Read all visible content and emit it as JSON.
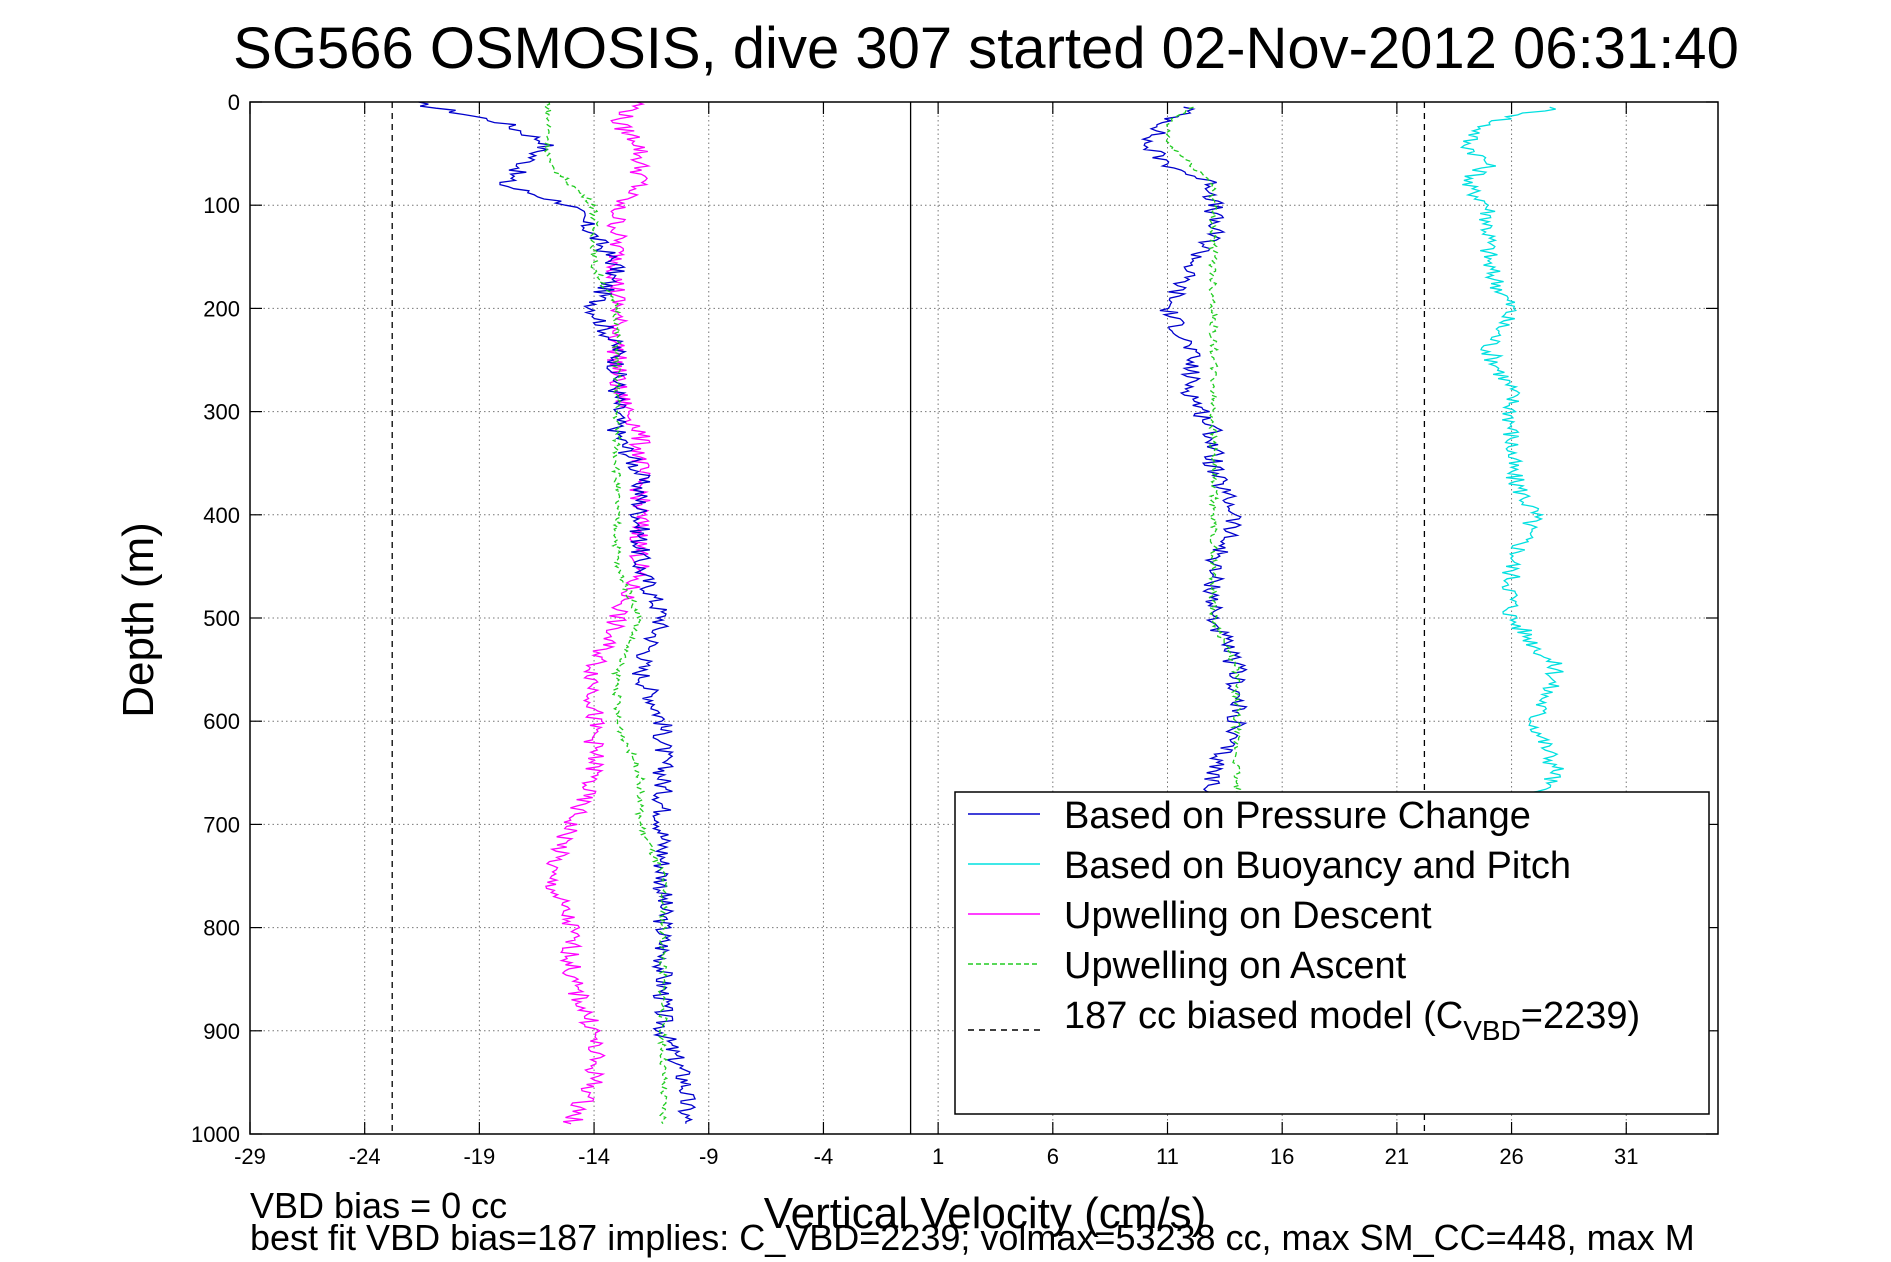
{
  "chart_data": {
    "type": "line",
    "title": "SG566 OSMOSIS, dive 307 started 02-Nov-2012 06:31:40",
    "xlabel": "Vertical Velocity (cm/s)",
    "ylabel": "Depth (m)",
    "xlim": [
      -29,
      35
    ],
    "ylim": [
      1000,
      0
    ],
    "y_reversed": true,
    "grid": true,
    "x_ticks": [
      "-29",
      "-24",
      "-19",
      "-14",
      "-9",
      "-4",
      "1",
      "6",
      "11",
      "16",
      "21",
      "26",
      "31"
    ],
    "y_ticks": [
      "0",
      "100",
      "200",
      "300",
      "400",
      "500",
      "600",
      "700",
      "800",
      "900",
      "1000"
    ],
    "legend_position": "bottom-right",
    "footer_lines": [
      "VBD bias = 0 cc",
      "best fit VBD bias=187 implies: C_VBD=2239; volmax=53238 cc, max SM_CC=448, max M"
    ],
    "series": [
      {
        "name": "Based on Pressure Change",
        "color": "#0000cc",
        "style": "solid",
        "segments": [
          {
            "depth": [
              0,
              20,
              40,
              60,
              80,
              100,
              130,
              160,
              200,
              240,
              280,
              320,
              360,
              400,
              450,
              500,
              550,
              600,
              650,
              700,
              750,
              800,
              850,
              900,
              950,
              990
            ],
            "velocity": [
              -22,
              -18,
              -16,
              -17,
              -18,
              -15,
              -14,
              -13,
              -14,
              -13,
              -13,
              -13,
              -12,
              -12,
              -12,
              -11,
              -12,
              -11,
              -11,
              -11,
              -11,
              -11,
              -11,
              -11,
              -10,
              -10
            ]
          },
          {
            "depth": [
              5,
              20,
              40,
              60,
              80,
              100,
              130,
              160,
              200,
              240,
              280,
              320,
              360,
              400,
              450,
              500,
              550,
              600,
              650,
              672
            ],
            "velocity": [
              12,
              11,
              10,
              11,
              13,
              13,
              13,
              12,
              11,
              12,
              12,
              13,
              13,
              14,
              13,
              13,
              14,
              14,
              13,
              13
            ]
          }
        ]
      },
      {
        "name": "Based on Buoyancy and Pitch",
        "color": "#00e0e0",
        "style": "solid",
        "segments": [
          {
            "depth": [
              5,
              20,
              40,
              60,
              80,
              100,
              130,
              160,
              200,
              240,
              280,
              320,
              360,
              400,
              450,
              500,
              550,
              600,
              650,
              672
            ],
            "velocity": [
              28,
              25,
              24,
              25,
              24,
              25,
              25,
              25,
              26,
              25,
              26,
              26,
              26,
              27,
              26,
              26,
              28,
              27,
              28,
              27
            ]
          }
        ]
      },
      {
        "name": "Upwelling on Descent",
        "color": "#ff00ff",
        "style": "solid",
        "segments": [
          {
            "depth": [
              0,
              20,
              40,
              60,
              80,
              100,
              130,
              160,
              200,
              240,
              280,
              320,
              360,
              400,
              450,
              500,
              550,
              600,
              650,
              700,
              750,
              800,
              850,
              900,
              950,
              990
            ],
            "velocity": [
              -12,
              -13,
              -12,
              -12,
              -12,
              -13,
              -13,
              -13,
              -13,
              -13,
              -13,
              -12,
              -12,
              -12,
              -12,
              -13,
              -14,
              -14,
              -14,
              -15,
              -16,
              -15,
              -15,
              -14,
              -14,
              -15
            ]
          }
        ]
      },
      {
        "name": "Upwelling on Ascent",
        "color": "#22cc22",
        "style": "dashed",
        "segments": [
          {
            "depth": [
              0,
              20,
              40,
              60,
              80,
              100,
              130,
              160,
              200,
              240,
              280,
              320,
              360,
              400,
              450,
              500,
              550,
              600,
              650,
              700,
              750,
              800,
              850,
              900,
              950,
              990
            ],
            "velocity": [
              -16,
              -16,
              -16,
              -16,
              -15,
              -14,
              -14,
              -14,
              -13,
              -13,
              -13,
              -13,
              -13,
              -13,
              -13,
              -12,
              -13,
              -13,
              -12,
              -12,
              -11,
              -11,
              -11,
              -11,
              -11,
              -11
            ]
          },
          {
            "depth": [
              5,
              20,
              40,
              60,
              80,
              100,
              130,
              160,
              200,
              240,
              280,
              320,
              360,
              400,
              450,
              500,
              550,
              600,
              650,
              672
            ],
            "velocity": [
              12,
              11,
              11,
              12,
              13,
              13,
              13,
              13,
              13,
              13,
              13,
              13,
              13,
              13,
              13,
              13,
              14,
              14,
              14,
              14
            ]
          }
        ]
      },
      {
        "name": "187 cc biased model (C",
        "name_subscript": "VBD",
        "name_suffix": "=2239)",
        "color": "#000000",
        "style": "dashed",
        "segments": [
          {
            "depth": [
              0,
              1000
            ],
            "velocity": [
              -22.8,
              -22.8
            ]
          },
          {
            "depth": [
              0,
              1000
            ],
            "velocity": [
              22.2,
              22.2
            ]
          }
        ]
      }
    ],
    "zero_line": {
      "velocity": -0.2,
      "color": "#000000"
    }
  }
}
